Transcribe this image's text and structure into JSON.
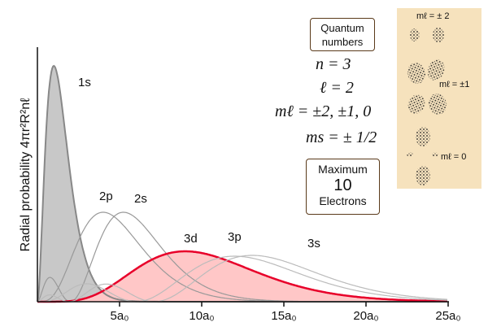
{
  "chart_data": {
    "type": "area",
    "ylabel": "Radial probability 4πr²R²nℓ",
    "x_unit": "a₀",
    "xlim": [
      0,
      25
    ],
    "x_ticks": [
      {
        "value": 5,
        "label": "5a₀"
      },
      {
        "value": 10,
        "label": "10a₀"
      },
      {
        "value": 15,
        "label": "15a₀"
      },
      {
        "value": 20,
        "label": "20a₀"
      },
      {
        "value": 25,
        "label": "25a₀"
      }
    ],
    "series": [
      {
        "name": "1s",
        "n": 1,
        "l": 0,
        "fill": "#c8c8c8",
        "stroke": "#888888",
        "peak_x": 1,
        "shaded": true
      },
      {
        "name": "2p",
        "n": 2,
        "l": 1,
        "stroke": "#999999",
        "peak_x": 4,
        "shaded": false
      },
      {
        "name": "2s",
        "n": 2,
        "l": 0,
        "stroke": "#999999",
        "peak_x": 5.2,
        "shaded": false
      },
      {
        "name": "3d",
        "n": 3,
        "l": 2,
        "fill": "#ffc7c7",
        "stroke": "#e8002a",
        "peak_x": 9,
        "shaded": true
      },
      {
        "name": "3p",
        "n": 3,
        "l": 1,
        "stroke": "#bbbbbb",
        "peak_x": 12,
        "shaded": false
      },
      {
        "name": "3s",
        "n": 3,
        "l": 0,
        "stroke": "#bbbbbb",
        "peak_x": 13.1,
        "shaded": false
      }
    ],
    "annotations": {
      "quantum_box": [
        "Quantum",
        "numbers"
      ],
      "n": "n = 3",
      "l": "ℓ = 2",
      "ml": "mℓ = ±2, ±1, 0",
      "ms": "ms = ± 1/2",
      "max_box": [
        "Maximum",
        "10",
        "Electrons"
      ]
    },
    "orbital_labels": [
      "mℓ = ± 2",
      "mℓ = ±1",
      "mℓ = 0"
    ]
  }
}
